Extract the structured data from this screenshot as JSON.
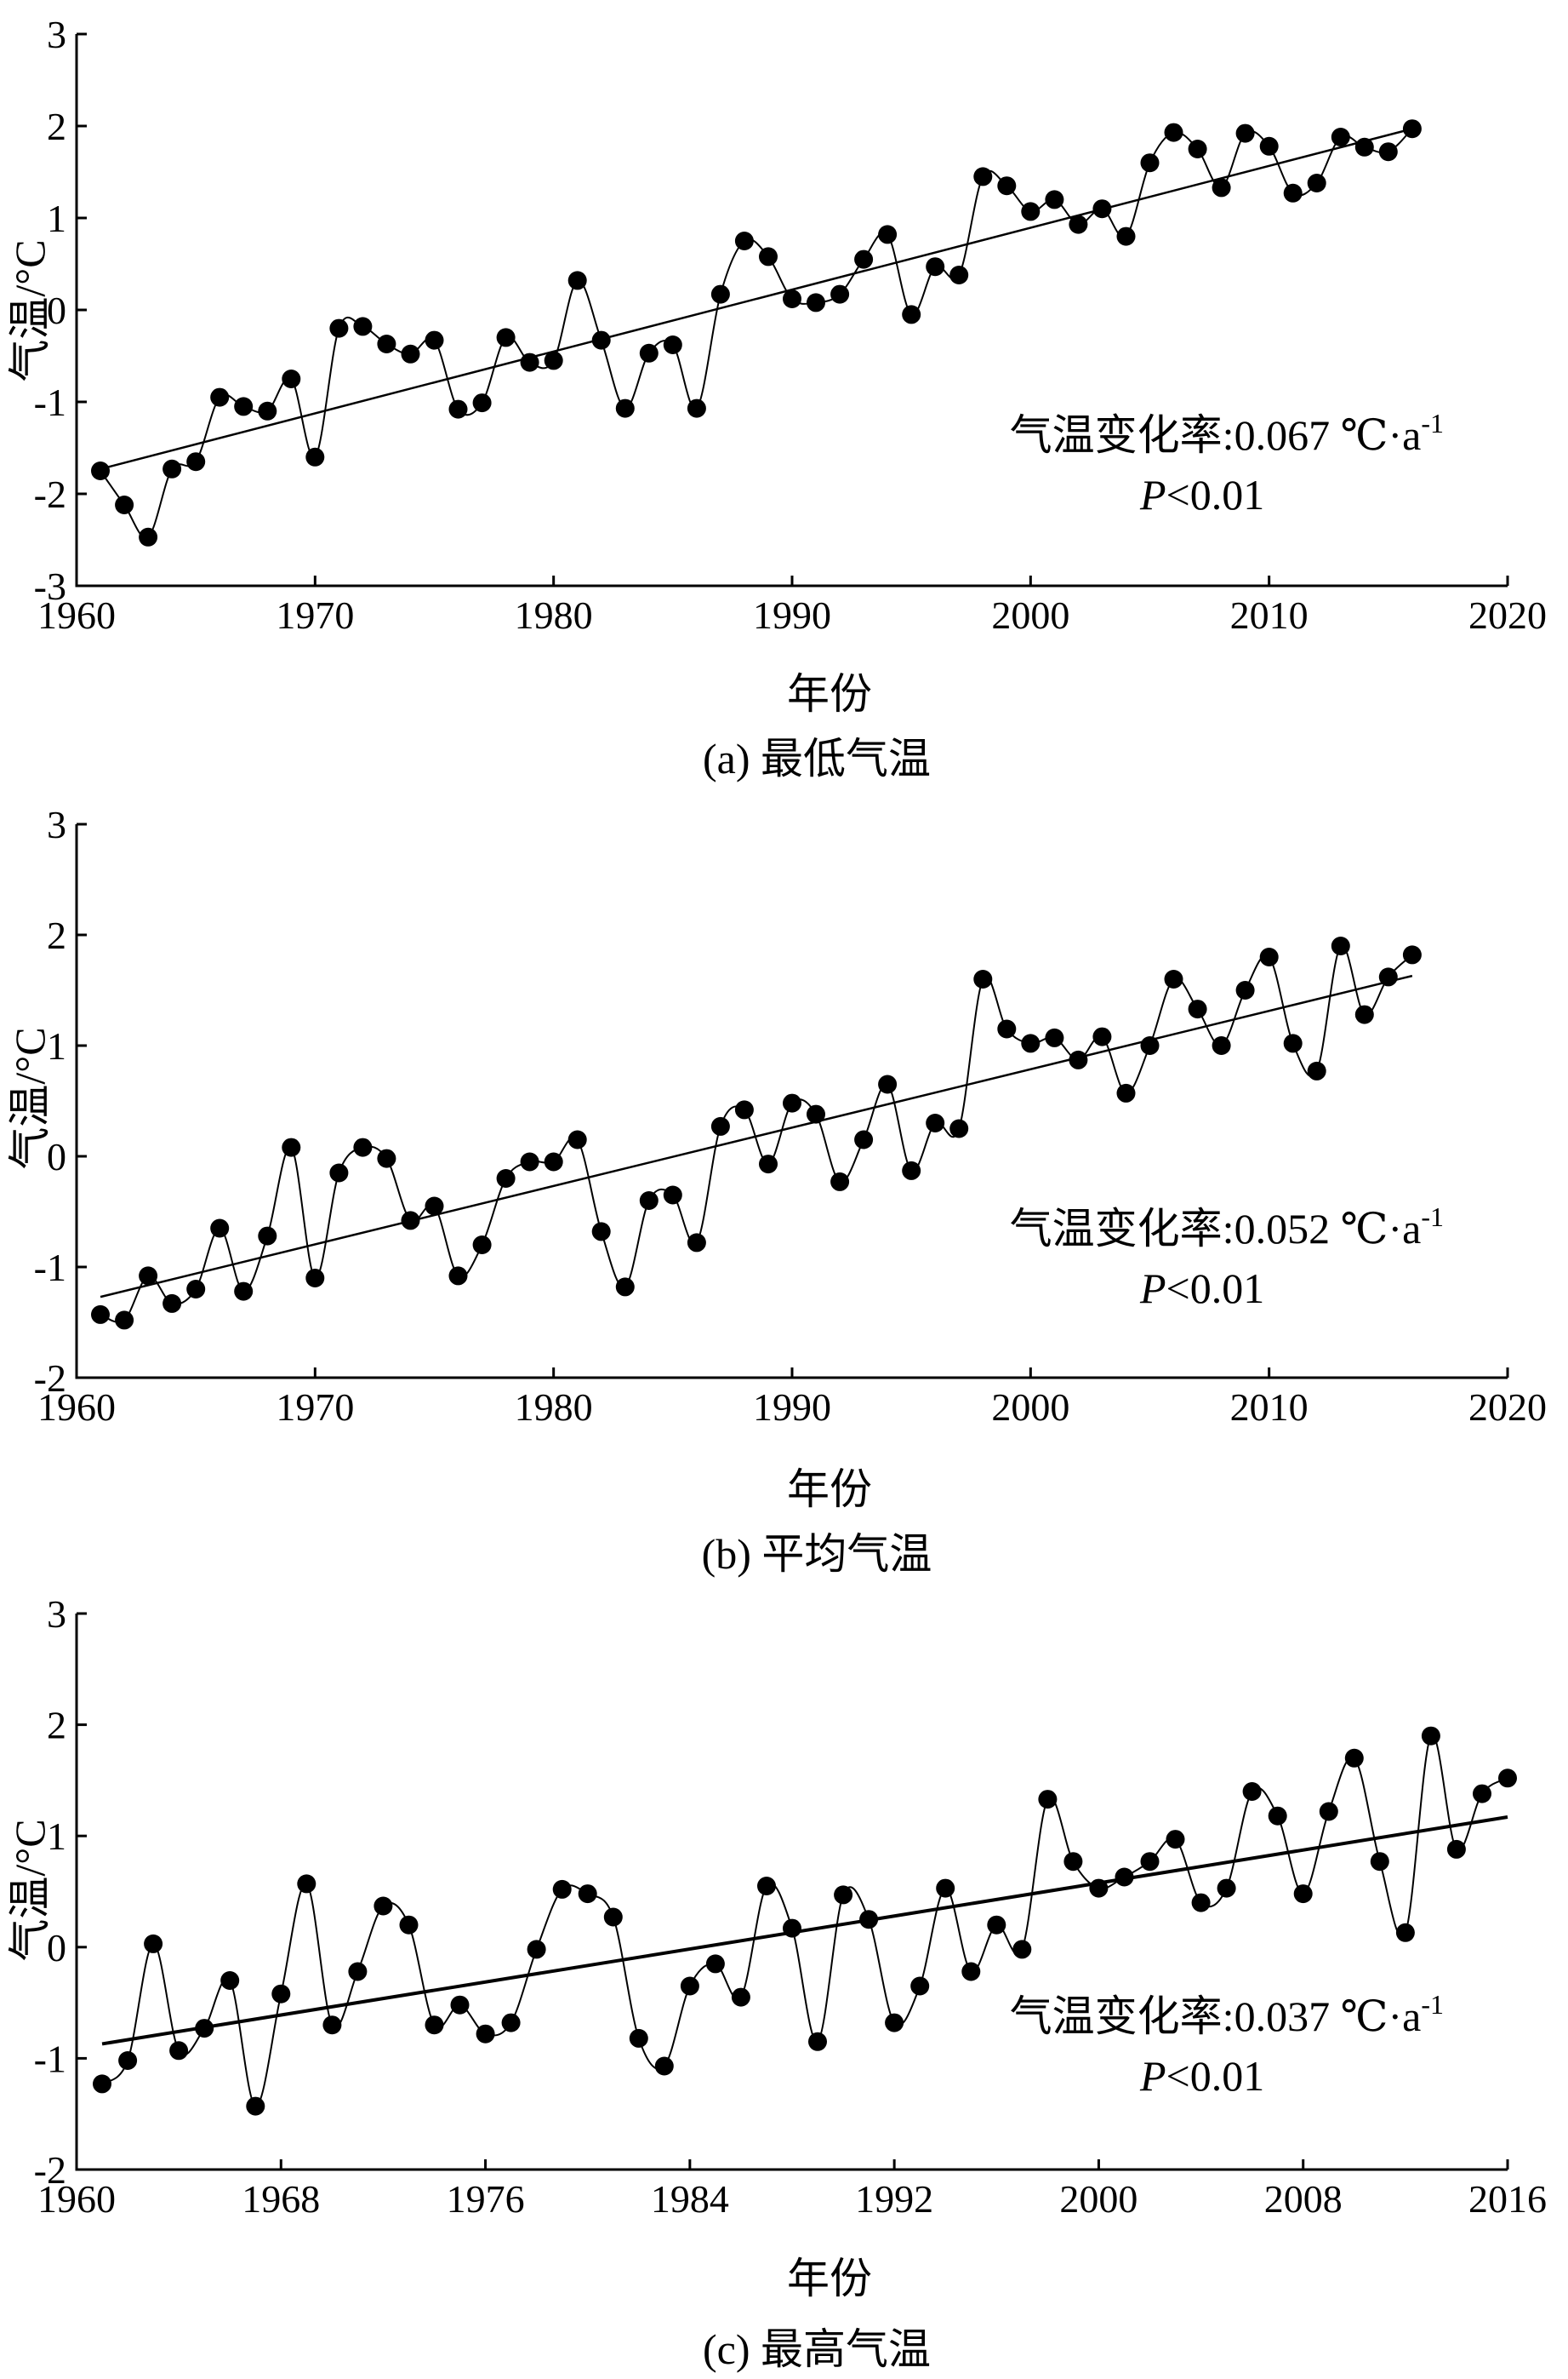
{
  "chart_data": [
    {
      "type": "line",
      "caption": "(a) 最低气温",
      "xlabel": "年份",
      "ylabel": "气温/°C",
      "xlim": [
        1960,
        2020
      ],
      "ylim": [
        -3,
        3
      ],
      "xticks": [
        1960,
        1970,
        1980,
        1990,
        2000,
        2010,
        2020
      ],
      "yticks": [
        -3,
        -2,
        -1,
        0,
        1,
        2,
        3
      ],
      "grid": false,
      "annotation": {
        "rate_label": "气温变化率:0.067 ℃·a",
        "rate_sup": "-1",
        "p_label": "P",
        "p_value": "<0.01"
      },
      "trend": {
        "start": [
          1961,
          -1.73
        ],
        "end": [
          2016,
          1.97
        ]
      },
      "series": [
        {
          "x": [
            1961,
            1962,
            1963,
            1964,
            1965,
            1966,
            1967,
            1968,
            1969,
            1970,
            1971,
            1972,
            1973,
            1974,
            1975,
            1976,
            1977,
            1978,
            1979,
            1980,
            1981,
            1982,
            1983,
            1984,
            1985,
            1986,
            1987,
            1988,
            1989,
            1990,
            1991,
            1992,
            1993,
            1994,
            1995,
            1996,
            1997,
            1998,
            1999,
            2000,
            2001,
            2002,
            2003,
            2004,
            2005,
            2006,
            2007,
            2008,
            2009,
            2010,
            2011,
            2012,
            2013,
            2014,
            2015,
            2016
          ],
          "values": [
            -1.75,
            -2.12,
            -2.47,
            -1.73,
            -1.65,
            -0.95,
            -1.05,
            -1.1,
            -0.75,
            -1.6,
            -0.2,
            -0.18,
            -0.37,
            -0.48,
            -0.33,
            -1.08,
            -1.01,
            -0.3,
            -0.57,
            -0.55,
            0.32,
            -0.33,
            -1.07,
            -0.47,
            -0.38,
            -1.07,
            0.17,
            0.75,
            0.58,
            0.12,
            0.08,
            0.17,
            0.55,
            0.82,
            -0.05,
            0.47,
            0.38,
            1.45,
            1.35,
            1.07,
            1.2,
            0.93,
            1.1,
            0.8,
            1.6,
            1.93,
            1.75,
            1.33,
            1.92,
            1.78,
            1.27,
            1.38,
            1.88,
            1.77,
            1.72,
            1.97
          ]
        }
      ]
    },
    {
      "type": "line",
      "caption": "(b) 平均气温",
      "xlabel": "年份",
      "ylabel": "气温/°C",
      "xlim": [
        1960,
        2020
      ],
      "ylim": [
        -2,
        3
      ],
      "xticks": [
        1960,
        1970,
        1980,
        1990,
        2000,
        2010,
        2020
      ],
      "yticks": [
        -2,
        -1,
        0,
        1,
        2,
        3
      ],
      "grid": false,
      "annotation": {
        "rate_label": "气温变化率:0.052 ℃·a",
        "rate_sup": "-1",
        "p_label": "P",
        "p_value": "<0.01"
      },
      "trend": {
        "start": [
          1961,
          -1.27
        ],
        "end": [
          2016,
          1.63
        ]
      },
      "series": [
        {
          "x": [
            1961,
            1962,
            1963,
            1964,
            1965,
            1966,
            1967,
            1968,
            1969,
            1970,
            1971,
            1972,
            1973,
            1974,
            1975,
            1976,
            1977,
            1978,
            1979,
            1980,
            1981,
            1982,
            1983,
            1984,
            1985,
            1986,
            1987,
            1988,
            1989,
            1990,
            1991,
            1992,
            1993,
            1994,
            1995,
            1996,
            1997,
            1998,
            1999,
            2000,
            2001,
            2002,
            2003,
            2004,
            2005,
            2006,
            2007,
            2008,
            2009,
            2010,
            2011,
            2012,
            2013,
            2014,
            2015,
            2016
          ],
          "values": [
            -1.43,
            -1.48,
            -1.08,
            -1.33,
            -1.2,
            -0.65,
            -1.22,
            -0.72,
            0.08,
            -1.1,
            -0.15,
            0.08,
            -0.02,
            -0.58,
            -0.45,
            -1.08,
            -0.8,
            -0.2,
            -0.05,
            -0.05,
            0.15,
            -0.68,
            -1.18,
            -0.4,
            -0.35,
            -0.78,
            0.27,
            0.42,
            -0.07,
            0.48,
            0.38,
            -0.23,
            0.15,
            0.65,
            -0.13,
            0.3,
            0.25,
            1.6,
            1.15,
            1.02,
            1.07,
            0.87,
            1.08,
            0.57,
            1.0,
            1.6,
            1.33,
            1.0,
            1.5,
            1.8,
            1.02,
            0.77,
            1.9,
            1.28,
            1.62,
            1.82
          ]
        }
      ]
    },
    {
      "type": "line",
      "caption": "(c) 最高气温",
      "xlabel": "年份",
      "ylabel": "气温/°C",
      "xlim": [
        1960,
        2016
      ],
      "ylim": [
        -2,
        3
      ],
      "xticks": [
        1960,
        1968,
        1976,
        1984,
        1992,
        2000,
        2008,
        2016
      ],
      "yticks": [
        -2,
        -1,
        0,
        1,
        2,
        3
      ],
      "grid": false,
      "annotation": {
        "rate_label": "气温变化率:0.037 ℃·a",
        "rate_sup": "-1",
        "p_label": "P",
        "p_value": "<0.01"
      },
      "trend": {
        "start": [
          1961,
          -0.87
        ],
        "end": [
          2016,
          1.17
        ]
      },
      "series": [
        {
          "x": [
            1961,
            1962,
            1963,
            1964,
            1965,
            1966,
            1967,
            1968,
            1969,
            1970,
            1971,
            1972,
            1973,
            1974,
            1975,
            1976,
            1977,
            1978,
            1979,
            1980,
            1981,
            1982,
            1983,
            1984,
            1985,
            1986,
            1987,
            1988,
            1989,
            1990,
            1991,
            1992,
            1993,
            1994,
            1995,
            1996,
            1997,
            1998,
            1999,
            2000,
            2001,
            2002,
            2003,
            2004,
            2005,
            2006,
            2007,
            2008,
            2009,
            2010,
            2011,
            2012,
            2013,
            2014,
            2015,
            2016
          ],
          "values": [
            -1.23,
            -1.02,
            0.03,
            -0.93,
            -0.73,
            -0.3,
            -1.43,
            -0.42,
            0.57,
            -0.7,
            -0.22,
            0.37,
            0.2,
            -0.7,
            -0.52,
            -0.78,
            -0.68,
            -0.02,
            0.52,
            0.48,
            0.27,
            -0.82,
            -1.07,
            -0.35,
            -0.15,
            -0.45,
            0.55,
            0.17,
            -0.85,
            0.47,
            0.25,
            -0.68,
            -0.35,
            0.53,
            -0.22,
            0.2,
            -0.02,
            1.33,
            0.77,
            0.53,
            0.63,
            0.77,
            0.97,
            0.4,
            0.53,
            1.4,
            1.18,
            0.48,
            1.22,
            1.7,
            0.77,
            0.13,
            1.9,
            0.88,
            1.38,
            1.52
          ]
        }
      ]
    }
  ]
}
